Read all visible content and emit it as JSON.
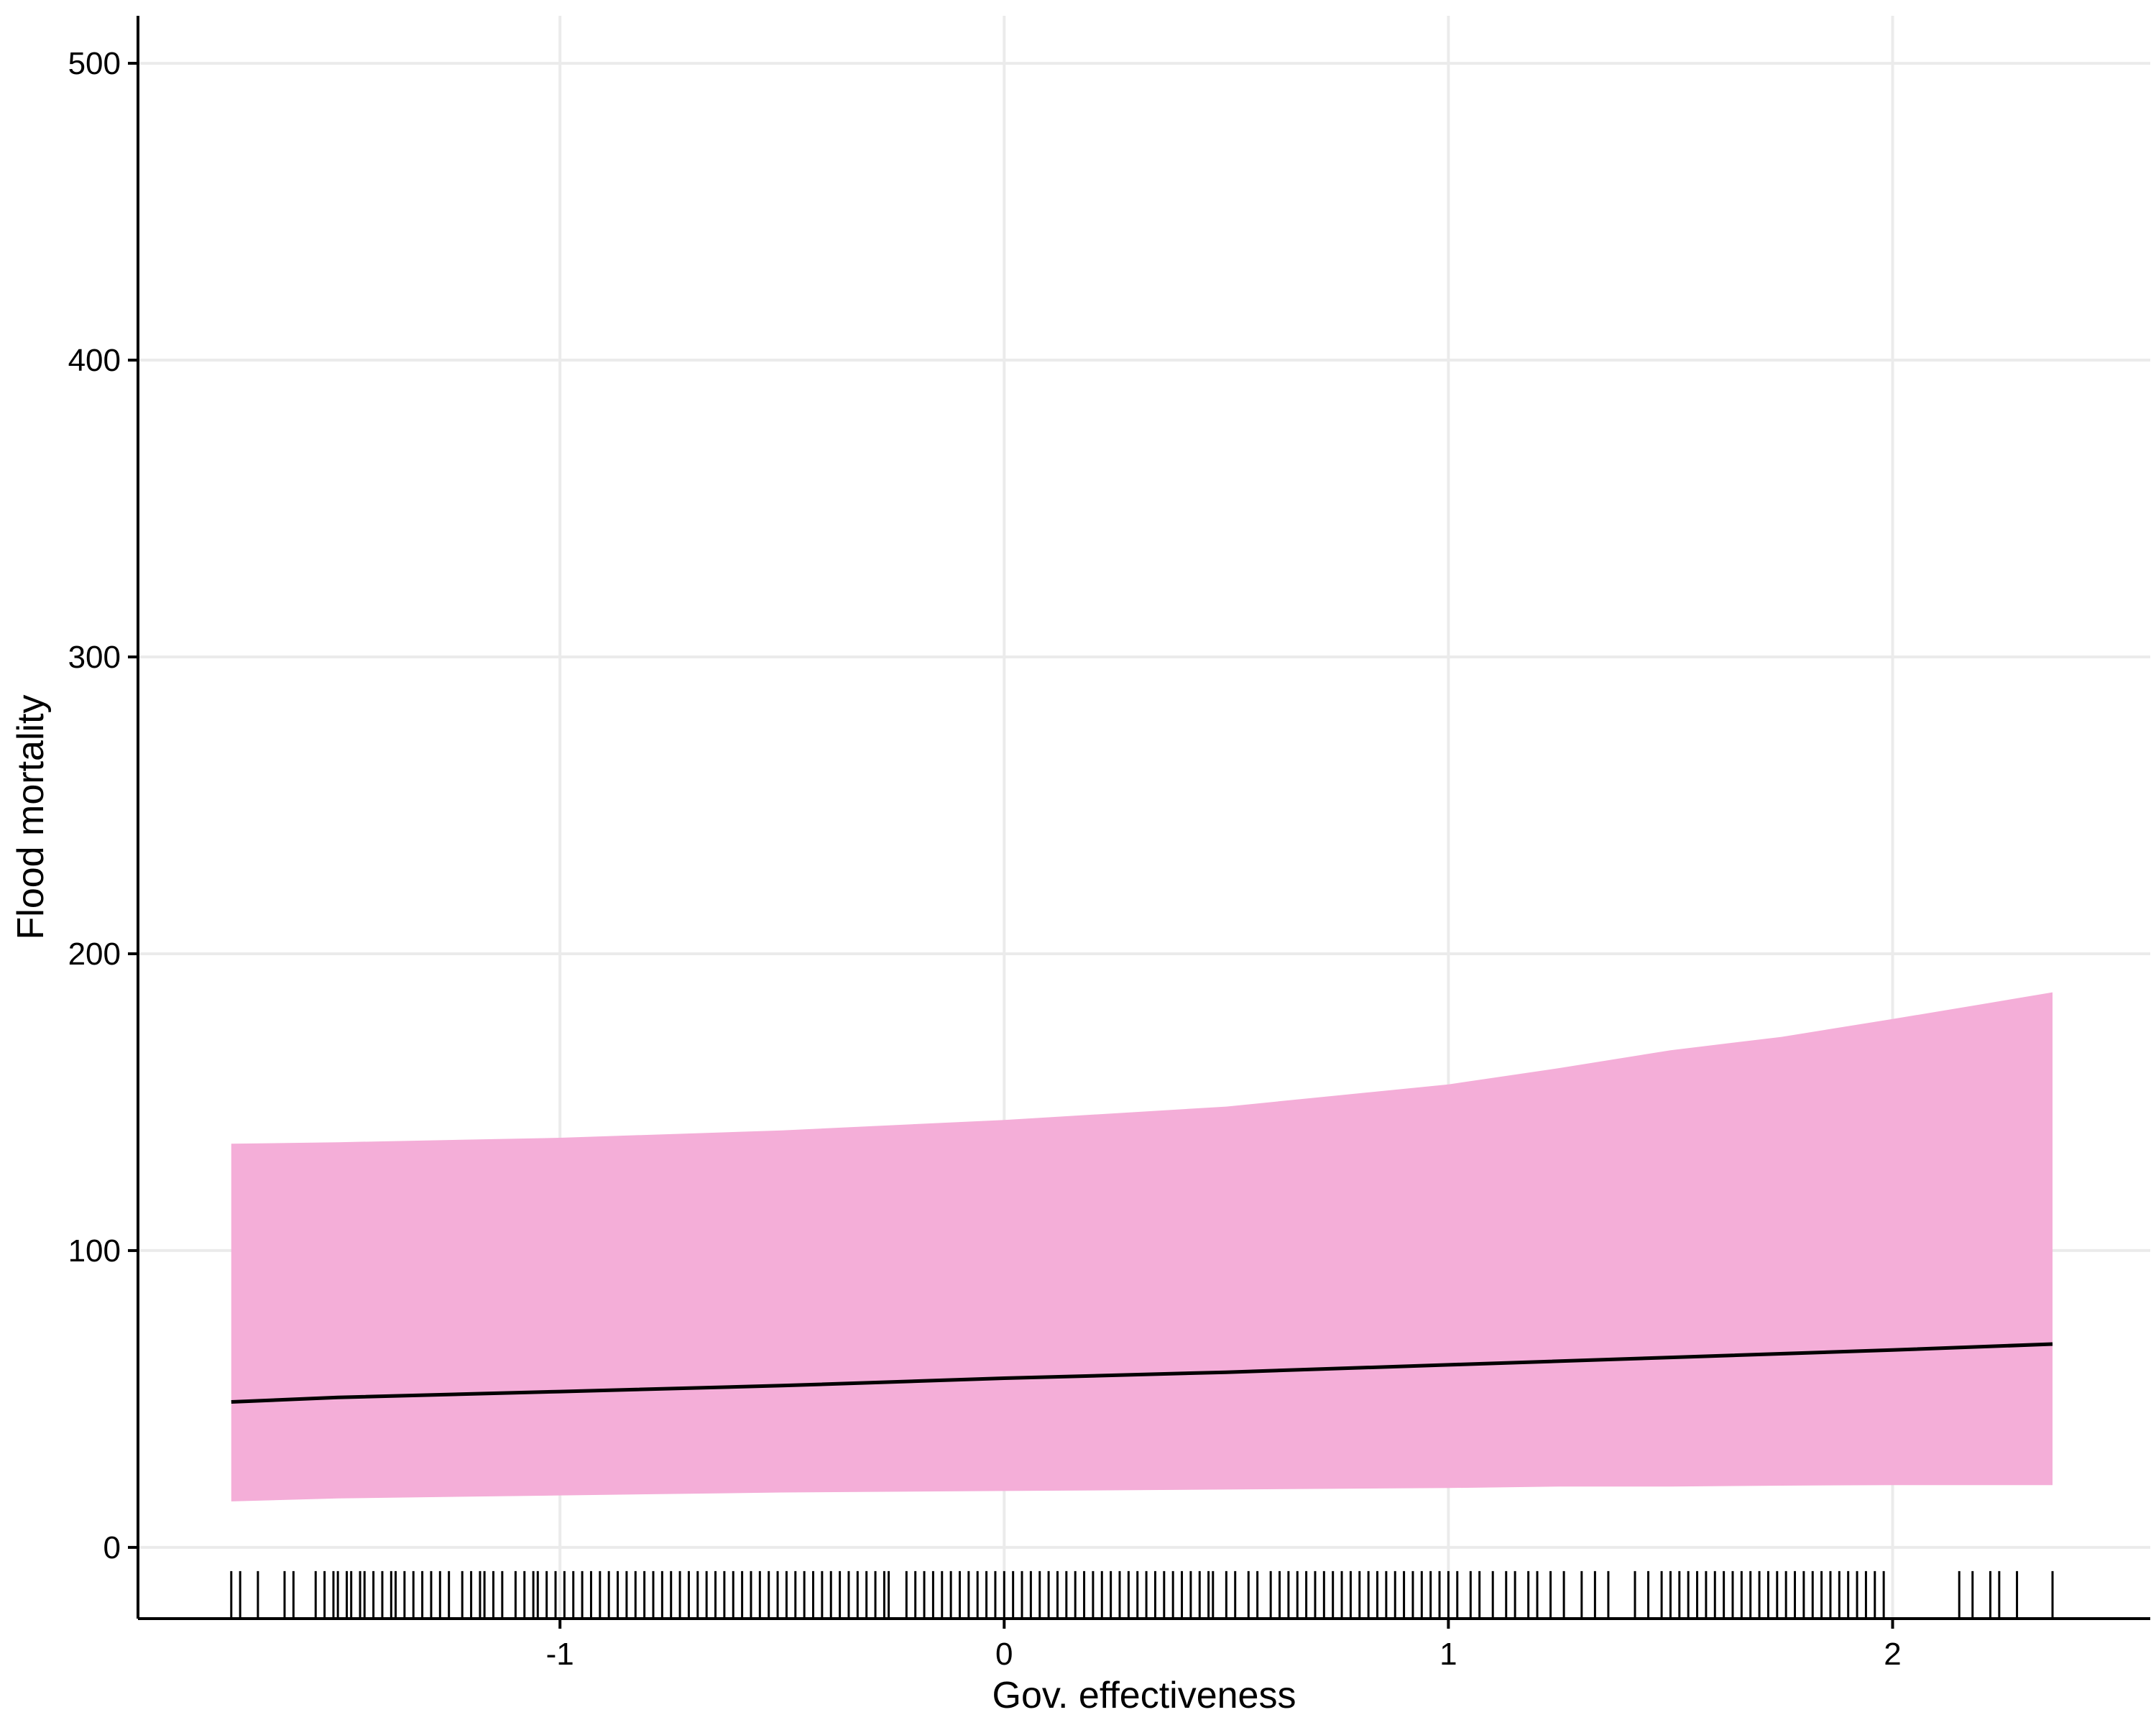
{
  "chart_data": {
    "type": "line",
    "xlabel": "Gov. effectiveness",
    "ylabel": "Flood mortality",
    "xlim": [
      -1.95,
      2.58
    ],
    "ylim": [
      -24,
      516
    ],
    "x_ticks": [
      -1,
      0,
      1,
      2
    ],
    "y_ticks": [
      0,
      100,
      200,
      300,
      400,
      500
    ],
    "grid": true,
    "colors": {
      "ribbon": "#f4aed8",
      "line": "#000000",
      "grid": "#ebebeb",
      "axis": "#000000",
      "rug": "#000000"
    },
    "series": [
      {
        "kind": "line",
        "x": [
          -1.74,
          -1.5,
          -1.0,
          -0.5,
          0.0,
          0.5,
          1.0,
          1.5,
          2.0,
          2.36
        ],
        "y": [
          49,
          50.5,
          52.5,
          54.5,
          57,
          59,
          61.5,
          64,
          66.5,
          68.5
        ]
      },
      {
        "kind": "ribbon",
        "x": [
          -1.74,
          -1.5,
          -1.0,
          -0.5,
          0.0,
          0.5,
          1.0,
          1.25,
          1.5,
          1.75,
          2.0,
          2.2,
          2.36
        ],
        "upper": [
          136,
          136.5,
          138,
          140.5,
          144,
          148.5,
          156,
          161.5,
          167.5,
          172,
          178,
          183,
          187
        ],
        "lower": [
          15.5,
          16.5,
          17.5,
          18.5,
          19,
          19.5,
          20,
          20.5,
          20.5,
          20.8,
          21,
          21,
          21
        ]
      }
    ],
    "rug_x": [
      -1.74,
      -1.72,
      -1.68,
      -1.62,
      -1.6,
      -1.55,
      -1.53,
      -1.51,
      -1.5,
      -1.48,
      -1.47,
      -1.45,
      -1.44,
      -1.42,
      -1.4,
      -1.38,
      -1.37,
      -1.35,
      -1.33,
      -1.31,
      -1.29,
      -1.27,
      -1.25,
      -1.22,
      -1.2,
      -1.18,
      -1.17,
      -1.15,
      -1.13,
      -1.1,
      -1.08,
      -1.06,
      -1.05,
      -1.03,
      -1.01,
      -0.99,
      -0.97,
      -0.95,
      -0.93,
      -0.91,
      -0.89,
      -0.87,
      -0.85,
      -0.83,
      -0.81,
      -0.79,
      -0.77,
      -0.75,
      -0.73,
      -0.71,
      -0.69,
      -0.67,
      -0.65,
      -0.63,
      -0.61,
      -0.59,
      -0.57,
      -0.55,
      -0.53,
      -0.51,
      -0.49,
      -0.47,
      -0.45,
      -0.43,
      -0.41,
      -0.39,
      -0.37,
      -0.35,
      -0.33,
      -0.31,
      -0.29,
      -0.27,
      -0.26,
      -0.22,
      -0.2,
      -0.18,
      -0.16,
      -0.14,
      -0.12,
      -0.1,
      -0.08,
      -0.06,
      -0.04,
      -0.02,
      0.0,
      0.02,
      0.04,
      0.06,
      0.08,
      0.1,
      0.12,
      0.14,
      0.16,
      0.18,
      0.2,
      0.22,
      0.24,
      0.26,
      0.28,
      0.3,
      0.32,
      0.34,
      0.36,
      0.38,
      0.4,
      0.42,
      0.44,
      0.46,
      0.47,
      0.5,
      0.52,
      0.55,
      0.57,
      0.6,
      0.62,
      0.64,
      0.66,
      0.68,
      0.7,
      0.72,
      0.74,
      0.76,
      0.78,
      0.8,
      0.82,
      0.84,
      0.86,
      0.88,
      0.9,
      0.92,
      0.94,
      0.96,
      0.98,
      1.0,
      1.02,
      1.05,
      1.07,
      1.1,
      1.13,
      1.15,
      1.18,
      1.2,
      1.23,
      1.26,
      1.3,
      1.33,
      1.36,
      1.42,
      1.45,
      1.48,
      1.5,
      1.52,
      1.54,
      1.56,
      1.58,
      1.6,
      1.62,
      1.64,
      1.66,
      1.68,
      1.7,
      1.72,
      1.74,
      1.76,
      1.78,
      1.8,
      1.82,
      1.84,
      1.86,
      1.88,
      1.9,
      1.92,
      1.94,
      1.96,
      1.98,
      2.15,
      2.18,
      2.22,
      2.24,
      2.28,
      2.36
    ]
  }
}
